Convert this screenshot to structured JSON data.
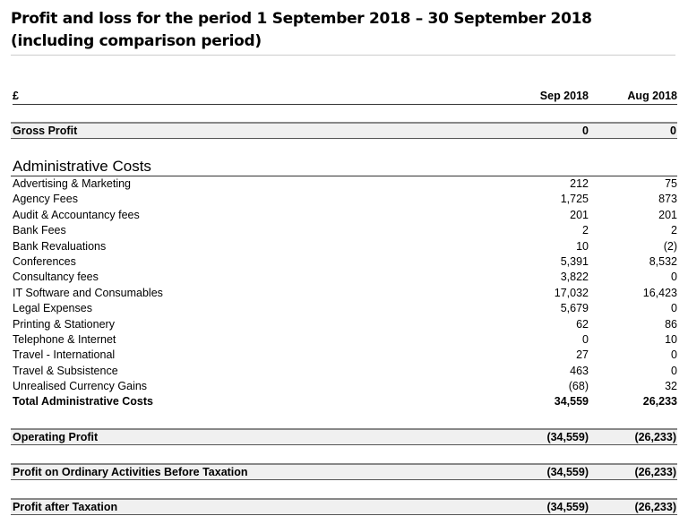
{
  "title": "Profit and loss for the period 1 September 2018 – 30 September 2018 (including comparison period)",
  "header": {
    "currency": "£",
    "col1": "Sep 2018",
    "col2": "Aug 2018"
  },
  "gross_profit": {
    "label": "Gross Profit",
    "v1": "0",
    "v2": "0"
  },
  "section_title": "Administrative Costs",
  "items": [
    {
      "label": "Advertising & Marketing",
      "v1": "212",
      "v2": "75"
    },
    {
      "label": "Agency Fees",
      "v1": "1,725",
      "v2": "873"
    },
    {
      "label": "Audit & Accountancy fees",
      "v1": "201",
      "v2": "201"
    },
    {
      "label": "Bank Fees",
      "v1": "2",
      "v2": "2"
    },
    {
      "label": "Bank Revaluations",
      "v1": "10",
      "v2": "(2)"
    },
    {
      "label": "Conferences",
      "v1": "5,391",
      "v2": "8,532"
    },
    {
      "label": "Consultancy fees",
      "v1": "3,822",
      "v2": "0"
    },
    {
      "label": "IT Software and Consumables",
      "v1": "17,032",
      "v2": "16,423"
    },
    {
      "label": "Legal Expenses",
      "v1": "5,679",
      "v2": "0"
    },
    {
      "label": "Printing & Stationery",
      "v1": "62",
      "v2": "86"
    },
    {
      "label": "Telephone & Internet",
      "v1": "0",
      "v2": "10"
    },
    {
      "label": "Travel - International",
      "v1": "27",
      "v2": "0"
    },
    {
      "label": "Travel & Subsistence",
      "v1": "463",
      "v2": "0"
    },
    {
      "label": "Unrealised Currency Gains",
      "v1": "(68)",
      "v2": "32"
    }
  ],
  "total": {
    "label": "Total Administrative Costs",
    "v1": "34,559",
    "v2": "26,233"
  },
  "operating": {
    "label": "Operating Profit",
    "v1": "(34,559)",
    "v2": "(26,233)"
  },
  "before_tax": {
    "label": "Profit on Ordinary Activities Before Taxation",
    "v1": "(34,559)",
    "v2": "(26,233)"
  },
  "after_tax": {
    "label": "Profit after Taxation",
    "v1": "(34,559)",
    "v2": "(26,233)"
  }
}
